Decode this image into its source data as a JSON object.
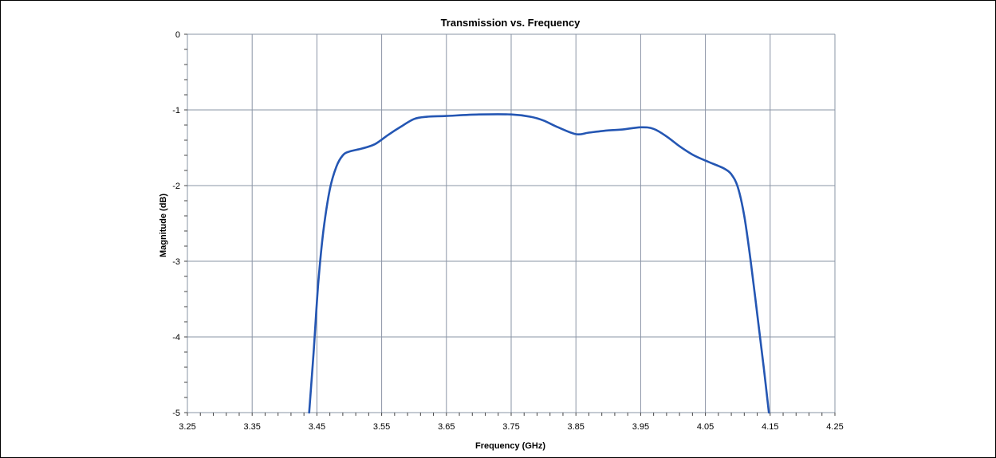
{
  "chart_data": {
    "type": "line",
    "title": "Transmission vs. Frequency",
    "xlabel": "Frequency (GHz)",
    "ylabel": "Magnitude (dB)",
    "xlim": [
      3.25,
      4.25
    ],
    "ylim": [
      -5,
      0
    ],
    "x_ticks": [
      "3.25",
      "3.35",
      "3.45",
      "3.55",
      "3.65",
      "3.75",
      "3.85",
      "3.95",
      "4.05",
      "4.15",
      "4.25"
    ],
    "y_ticks": [
      "0",
      "-1",
      "-2",
      "-3",
      "-4",
      "-5"
    ],
    "grid": true,
    "legend": "none",
    "line_color": "#2456b3",
    "series": [
      {
        "x": [
          3.438,
          3.445,
          3.452,
          3.46,
          3.47,
          3.48,
          3.49,
          3.5,
          3.52,
          3.54,
          3.56,
          3.58,
          3.6,
          3.62,
          3.65,
          3.7,
          3.75,
          3.78,
          3.8,
          3.82,
          3.85,
          3.87,
          3.9,
          3.92,
          3.95,
          3.97,
          3.99,
          4.01,
          4.03,
          4.05,
          4.07,
          4.08,
          4.09,
          4.1,
          4.11,
          4.12,
          4.13,
          4.14,
          4.148
        ],
        "y": [
          -5.0,
          -4.2,
          -3.3,
          -2.6,
          -2.05,
          -1.75,
          -1.6,
          -1.55,
          -1.51,
          -1.45,
          -1.33,
          -1.22,
          -1.12,
          -1.09,
          -1.08,
          -1.06,
          -1.06,
          -1.09,
          -1.14,
          -1.22,
          -1.32,
          -1.3,
          -1.27,
          -1.26,
          -1.23,
          -1.25,
          -1.35,
          -1.48,
          -1.59,
          -1.67,
          -1.74,
          -1.78,
          -1.85,
          -2.02,
          -2.4,
          -3.0,
          -3.7,
          -4.4,
          -5.0
        ]
      }
    ]
  }
}
